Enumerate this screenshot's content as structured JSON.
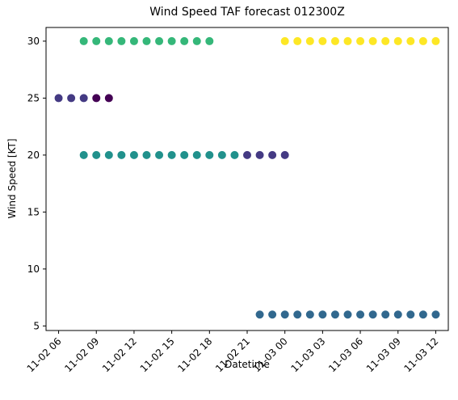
{
  "chart_data": {
    "type": "scatter",
    "title": "Wind Speed TAF forecast 012300Z",
    "xlabel": "Datetime",
    "ylabel": "Wind Speed [KT]",
    "x_unit": "hour",
    "x_range": [
      "11-02 05:00",
      "11-03 13:00"
    ],
    "xlim": [
      "2023-11-02 05:00",
      "2023-11-03 13:00"
    ],
    "ylim": [
      4.6,
      31.2
    ],
    "grid": false,
    "x_ticks": [
      "11-02 06",
      "11-02 09",
      "11-02 12",
      "11-02 15",
      "11-02 18",
      "11-02 21",
      "11-03 00",
      "11-03 03",
      "11-03 06",
      "11-03 09",
      "11-03 12"
    ],
    "x_tick_values": [
      "2023-11-02 06:00",
      "2023-11-02 09:00",
      "2023-11-02 12:00",
      "2023-11-02 15:00",
      "2023-11-02 18:00",
      "2023-11-02 21:00",
      "2023-11-03 00:00",
      "2023-11-03 03:00",
      "2023-11-03 06:00",
      "2023-11-03 09:00",
      "2023-11-03 12:00"
    ],
    "y_ticks": [
      5,
      10,
      15,
      20,
      25,
      30
    ],
    "series": [
      {
        "color": "#440154",
        "points": [
          {
            "x": "2023-11-02 09:00",
            "y": 25
          },
          {
            "x": "2023-11-02 10:00",
            "y": 25
          }
        ]
      },
      {
        "color": "#443a83",
        "points": [
          {
            "x": "2023-11-02 06:00",
            "y": 25
          },
          {
            "x": "2023-11-02 07:00",
            "y": 25
          },
          {
            "x": "2023-11-02 08:00",
            "y": 25
          },
          {
            "x": "2023-11-02 21:00",
            "y": 20
          },
          {
            "x": "2023-11-02 22:00",
            "y": 20
          },
          {
            "x": "2023-11-02 23:00",
            "y": 20
          },
          {
            "x": "2023-11-03 00:00",
            "y": 20
          }
        ]
      },
      {
        "color": "#31688e",
        "points": [
          {
            "x": "2023-11-02 22:00",
            "y": 6
          },
          {
            "x": "2023-11-02 23:00",
            "y": 6
          },
          {
            "x": "2023-11-03 00:00",
            "y": 6
          },
          {
            "x": "2023-11-03 01:00",
            "y": 6
          },
          {
            "x": "2023-11-03 02:00",
            "y": 6
          },
          {
            "x": "2023-11-03 03:00",
            "y": 6
          },
          {
            "x": "2023-11-03 04:00",
            "y": 6
          },
          {
            "x": "2023-11-03 05:00",
            "y": 6
          },
          {
            "x": "2023-11-03 06:00",
            "y": 6
          },
          {
            "x": "2023-11-03 07:00",
            "y": 6
          },
          {
            "x": "2023-11-03 08:00",
            "y": 6
          },
          {
            "x": "2023-11-03 09:00",
            "y": 6
          },
          {
            "x": "2023-11-03 10:00",
            "y": 6
          },
          {
            "x": "2023-11-03 11:00",
            "y": 6
          },
          {
            "x": "2023-11-03 12:00",
            "y": 6
          }
        ]
      },
      {
        "color": "#21918c",
        "points": [
          {
            "x": "2023-11-02 08:00",
            "y": 20
          },
          {
            "x": "2023-11-02 09:00",
            "y": 20
          },
          {
            "x": "2023-11-02 10:00",
            "y": 20
          },
          {
            "x": "2023-11-02 11:00",
            "y": 20
          },
          {
            "x": "2023-11-02 12:00",
            "y": 20
          },
          {
            "x": "2023-11-02 13:00",
            "y": 20
          },
          {
            "x": "2023-11-02 14:00",
            "y": 20
          },
          {
            "x": "2023-11-02 15:00",
            "y": 20
          },
          {
            "x": "2023-11-02 16:00",
            "y": 20
          },
          {
            "x": "2023-11-02 17:00",
            "y": 20
          },
          {
            "x": "2023-11-02 18:00",
            "y": 20
          },
          {
            "x": "2023-11-02 19:00",
            "y": 20
          },
          {
            "x": "2023-11-02 20:00",
            "y": 20
          }
        ]
      },
      {
        "color": "#35b779",
        "points": [
          {
            "x": "2023-11-02 08:00",
            "y": 30
          },
          {
            "x": "2023-11-02 09:00",
            "y": 30
          },
          {
            "x": "2023-11-02 10:00",
            "y": 30
          },
          {
            "x": "2023-11-02 11:00",
            "y": 30
          },
          {
            "x": "2023-11-02 12:00",
            "y": 30
          },
          {
            "x": "2023-11-02 13:00",
            "y": 30
          },
          {
            "x": "2023-11-02 14:00",
            "y": 30
          },
          {
            "x": "2023-11-02 15:00",
            "y": 30
          },
          {
            "x": "2023-11-02 16:00",
            "y": 30
          },
          {
            "x": "2023-11-02 17:00",
            "y": 30
          },
          {
            "x": "2023-11-02 18:00",
            "y": 30
          }
        ]
      },
      {
        "color": "#fde725",
        "points": [
          {
            "x": "2023-11-03 00:00",
            "y": 30
          },
          {
            "x": "2023-11-03 01:00",
            "y": 30
          },
          {
            "x": "2023-11-03 02:00",
            "y": 30
          },
          {
            "x": "2023-11-03 03:00",
            "y": 30
          },
          {
            "x": "2023-11-03 04:00",
            "y": 30
          },
          {
            "x": "2023-11-03 05:00",
            "y": 30
          },
          {
            "x": "2023-11-03 06:00",
            "y": 30
          },
          {
            "x": "2023-11-03 07:00",
            "y": 30
          },
          {
            "x": "2023-11-03 08:00",
            "y": 30
          },
          {
            "x": "2023-11-03 09:00",
            "y": 30
          },
          {
            "x": "2023-11-03 10:00",
            "y": 30
          },
          {
            "x": "2023-11-03 11:00",
            "y": 30
          },
          {
            "x": "2023-11-03 12:00",
            "y": 30
          }
        ]
      }
    ]
  }
}
